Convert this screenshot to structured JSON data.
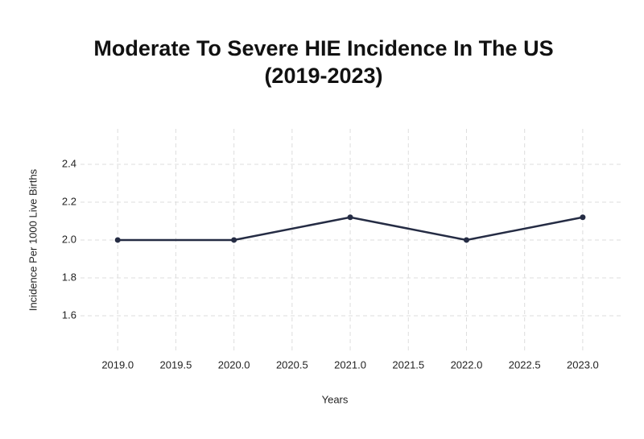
{
  "chart_data": {
    "type": "line",
    "title": [
      "Moderate To Severe HIE Incidence In The US",
      "(2019-2023)"
    ],
    "x_label": "Years",
    "y_label": "Incidence Per 1000 Live Births",
    "x": [
      2019,
      2020,
      2021,
      2022,
      2023
    ],
    "series": [
      {
        "name": "Incidence",
        "color": "#252c44",
        "values": [
          2.0,
          2.0,
          2.12,
          2.0,
          2.12
        ]
      }
    ],
    "xlim": [
      2018.68,
      2023.34
    ],
    "ylim": [
      1.404,
      2.587
    ],
    "xticks": [
      {
        "value": 2019,
        "label": "2019.0"
      },
      {
        "value": 2019.5,
        "label": "2019.5"
      },
      {
        "value": 2020,
        "label": "2020.0"
      },
      {
        "value": 2020.5,
        "label": "2020.5"
      },
      {
        "value": 2021,
        "label": "2021.0"
      },
      {
        "value": 2021.5,
        "label": "2021.5"
      },
      {
        "value": 2022,
        "label": "2022.0"
      },
      {
        "value": 2022.5,
        "label": "2022.5"
      },
      {
        "value": 2023,
        "label": "2023.0"
      }
    ],
    "yticks": [
      1.6,
      1.8,
      {
        "value": 2,
        "label": "2.0"
      },
      2.2,
      2.4
    ],
    "grid": true
  }
}
